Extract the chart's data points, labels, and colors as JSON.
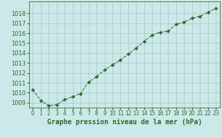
{
  "hours": [
    0,
    1,
    2,
    3,
    4,
    5,
    6,
    7,
    8,
    9,
    10,
    11,
    12,
    13,
    14,
    15,
    16,
    17,
    18,
    19,
    20,
    21,
    22,
    23
  ],
  "pressure": [
    1010.3,
    1009.2,
    1008.7,
    1008.8,
    1009.3,
    1009.6,
    1009.9,
    1011.1,
    1011.6,
    1012.3,
    1012.8,
    1013.3,
    1013.9,
    1014.5,
    1015.2,
    1015.8,
    1016.1,
    1016.2,
    1016.9,
    1017.1,
    1017.5,
    1017.7,
    1018.1,
    1018.5
  ],
  "line_color": "#2d6a2d",
  "marker": "D",
  "marker_size": 2.5,
  "bg_color": "#cce8e8",
  "grid_color": "#aacccc",
  "xlabel": "Graphe pression niveau de la mer (hPa)",
  "xlabel_color": "#2d6a2d",
  "tick_label_color": "#2d6a2d",
  "ylim_min": 1008.5,
  "ylim_max": 1019.2,
  "yticks": [
    1009,
    1010,
    1011,
    1012,
    1013,
    1014,
    1015,
    1016,
    1017,
    1018
  ],
  "ytick_fontsize": 6,
  "xtick_fontsize": 5.5,
  "xlabel_fontsize": 7
}
